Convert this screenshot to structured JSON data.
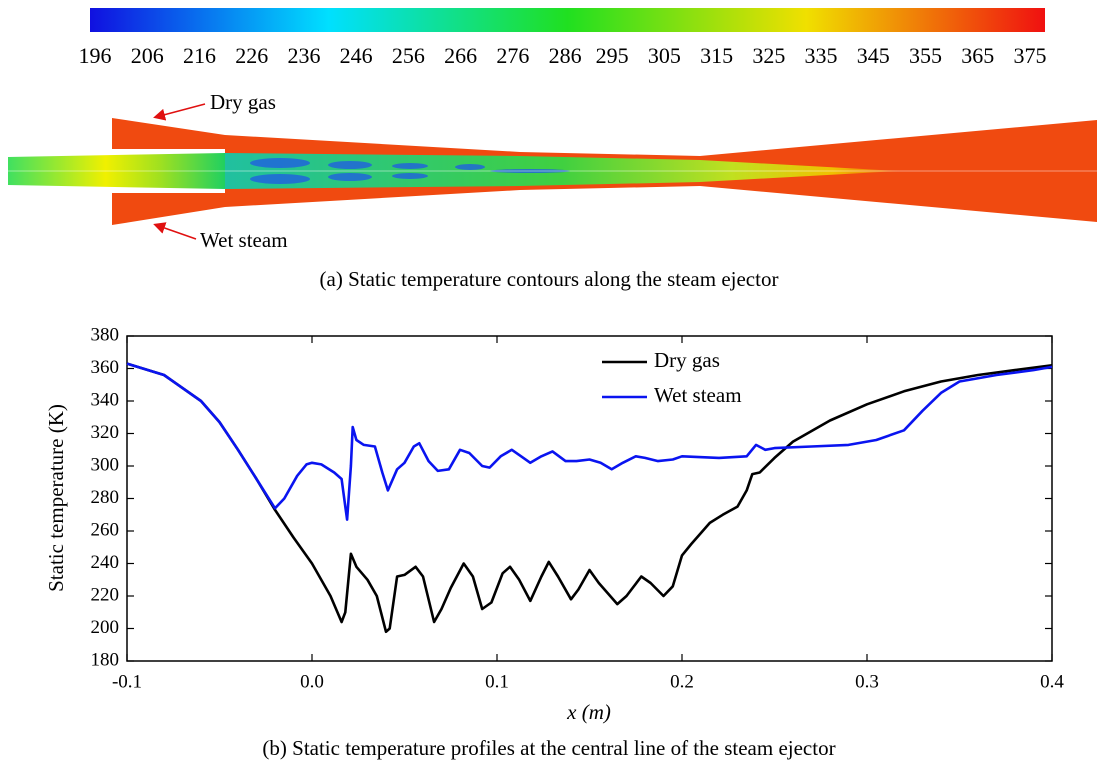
{
  "chart_data": [
    {
      "type": "contour",
      "caption": "(a) Static temperature contours along the steam ejector",
      "colorbar_ticks": [
        196,
        206,
        216,
        226,
        236,
        246,
        256,
        266,
        276,
        286,
        295,
        305,
        315,
        325,
        335,
        345,
        355,
        365,
        375
      ],
      "annotations": [
        "Dry gas",
        "Wet steam"
      ]
    },
    {
      "type": "line",
      "caption": "(b) Static temperature profiles at the central line of the steam ejector",
      "xlabel": "x (m)",
      "ylabel": "Static temperature (K)",
      "xlim": [
        -0.1,
        0.4
      ],
      "xticks": [
        -0.1,
        {
          "value": 0,
          "label": "0.0"
        },
        0.1,
        0.2,
        0.3,
        0.4
      ],
      "ylim": [
        180,
        380
      ],
      "yticks": [
        180,
        200,
        220,
        240,
        260,
        280,
        300,
        320,
        340,
        360,
        380
      ],
      "legend": "upper right",
      "series": [
        {
          "name": "Dry gas",
          "color": "#000000",
          "x": [
            -0.1,
            -0.08,
            -0.06,
            -0.05,
            -0.04,
            -0.03,
            -0.02,
            -0.01,
            0.0,
            0.01,
            0.016,
            0.018,
            0.021,
            0.024,
            0.03,
            0.035,
            0.04,
            0.042,
            0.046,
            0.05,
            0.056,
            0.06,
            0.066,
            0.07,
            0.075,
            0.082,
            0.087,
            0.092,
            0.097,
            0.103,
            0.107,
            0.112,
            0.118,
            0.124,
            0.128,
            0.133,
            0.14,
            0.144,
            0.15,
            0.155,
            0.165,
            0.17,
            0.178,
            0.183,
            0.19,
            0.195,
            0.2,
            0.205,
            0.215,
            0.222,
            0.23,
            0.235,
            0.238,
            0.242,
            0.25,
            0.26,
            0.28,
            0.3,
            0.32,
            0.34,
            0.36,
            0.38,
            0.4
          ],
          "values": [
            363,
            356,
            340,
            327,
            310,
            292,
            273,
            256,
            240,
            220,
            204,
            210,
            246,
            238,
            230,
            220,
            198,
            200,
            232,
            233,
            238,
            232,
            204,
            212,
            225,
            240,
            232,
            212,
            216,
            234,
            238,
            230,
            217,
            232,
            241,
            232,
            218,
            224,
            236,
            228,
            215,
            220,
            232,
            228,
            220,
            226,
            245,
            252,
            265,
            270,
            275,
            285,
            295,
            296,
            305,
            315,
            328,
            338,
            346,
            352,
            356,
            359,
            362
          ]
        },
        {
          "name": "Wet steam",
          "color": "#0a14f0",
          "x": [
            -0.1,
            -0.08,
            -0.06,
            -0.05,
            -0.04,
            -0.03,
            -0.02,
            -0.015,
            -0.008,
            -0.003,
            0.0,
            0.005,
            0.012,
            0.016,
            0.018,
            0.019,
            0.021,
            0.022,
            0.024,
            0.028,
            0.034,
            0.038,
            0.041,
            0.046,
            0.05,
            0.055,
            0.058,
            0.063,
            0.068,
            0.074,
            0.08,
            0.085,
            0.092,
            0.096,
            0.102,
            0.108,
            0.113,
            0.118,
            0.124,
            0.13,
            0.137,
            0.143,
            0.15,
            0.156,
            0.162,
            0.168,
            0.175,
            0.18,
            0.187,
            0.195,
            0.2,
            0.22,
            0.235,
            0.24,
            0.245,
            0.25,
            0.27,
            0.29,
            0.305,
            0.32,
            0.33,
            0.34,
            0.35,
            0.37,
            0.39,
            0.4
          ],
          "values": [
            363,
            356,
            340,
            327,
            310,
            292,
            274,
            280,
            294,
            301,
            302,
            301,
            296,
            292,
            275,
            267,
            300,
            324,
            316,
            313,
            312,
            296,
            285,
            298,
            302,
            312,
            314,
            303,
            297,
            298,
            310,
            308,
            300,
            299,
            306,
            310,
            306,
            302,
            306,
            309,
            303,
            303,
            304,
            302,
            298,
            302,
            306,
            305,
            303,
            304,
            306,
            305,
            306,
            313,
            310,
            311,
            312,
            313,
            316,
            322,
            334,
            345,
            352,
            356,
            359,
            361
          ]
        }
      ]
    }
  ]
}
